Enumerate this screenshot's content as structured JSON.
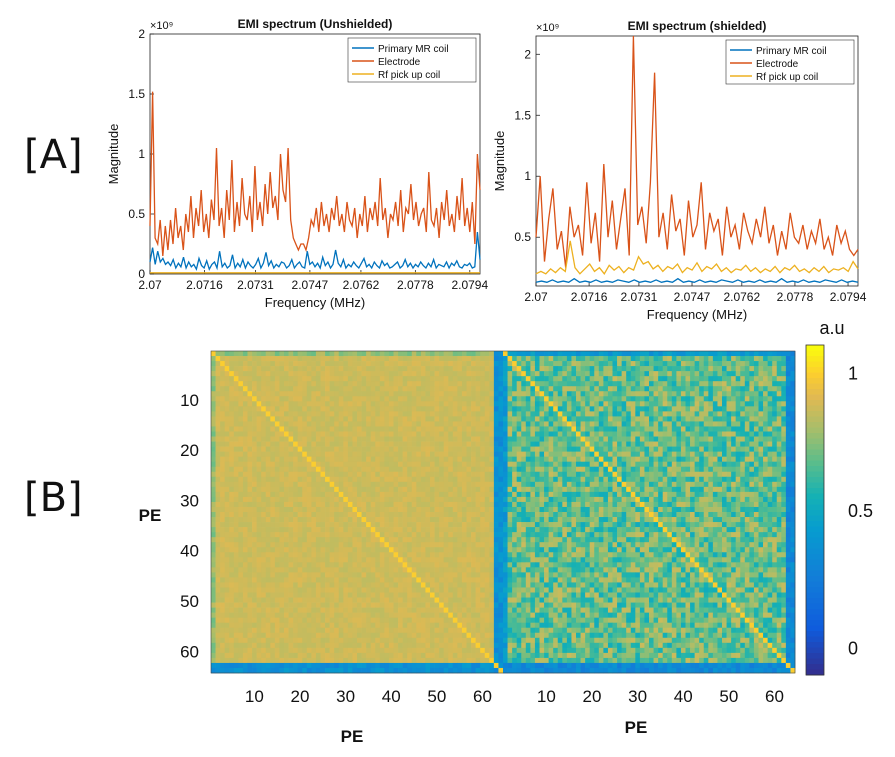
{
  "panels": {
    "a": "[A]",
    "b": "[B]"
  },
  "chart_data": [
    {
      "type": "line",
      "title": "EMI spectrum (Unshielded)",
      "xlabel": "Frequency (MHz)",
      "ylabel": "Magnitude",
      "exponent": "×10⁹",
      "xlim": [
        2.07,
        2.0797
      ],
      "ylim": [
        0,
        2
      ],
      "xticks": [
        "2.07",
        "2.0716",
        "2.0731",
        "2.0747",
        "2.0762",
        "2.0778",
        "2.0794"
      ],
      "yticks": [
        "0",
        "0.5",
        "1",
        "1.5",
        "2"
      ],
      "legend_position": "top-right",
      "series": [
        {
          "name": "Primary MR coil",
          "color": "#0072BD",
          "values": [
            0.1,
            0.22,
            0.08,
            0.19,
            0.1,
            0.13,
            0.08,
            0.1,
            0.07,
            0.12,
            0.05,
            0.09,
            0.06,
            0.14,
            0.05,
            0.1,
            0.06,
            0.08,
            0.04,
            0.13,
            0.07,
            0.05,
            0.11,
            0.04,
            0.08,
            0.1,
            0.05,
            0.19,
            0.06,
            0.09,
            0.05,
            0.07,
            0.16,
            0.05,
            0.09,
            0.06,
            0.12,
            0.05,
            0.1,
            0.07,
            0.05,
            0.08,
            0.13,
            0.05,
            0.09,
            0.18,
            0.07,
            0.11,
            0.05,
            0.08,
            0.06,
            0.1,
            0.09,
            0.05,
            0.07,
            0.12,
            0.05,
            0.08,
            0.1,
            0.06,
            0.05,
            0.19,
            0.08,
            0.1,
            0.06,
            0.09,
            0.05,
            0.14,
            0.07,
            0.1,
            0.05,
            0.08,
            0.2,
            0.09,
            0.06,
            0.12,
            0.05,
            0.08,
            0.06,
            0.1,
            0.07,
            0.05,
            0.09,
            0.13,
            0.06,
            0.08,
            0.05,
            0.1,
            0.07,
            0.05,
            0.11,
            0.07,
            0.09,
            0.05,
            0.06,
            0.08,
            0.1,
            0.05,
            0.07,
            0.12,
            0.06,
            0.09,
            0.05,
            0.08,
            0.06,
            0.1,
            0.07,
            0.05,
            0.09,
            0.06,
            0.12,
            0.05,
            0.08,
            0.07,
            0.06,
            0.1,
            0.05,
            0.09,
            0.07,
            0.11,
            0.06,
            0.05,
            0.08,
            0.07,
            0.09,
            0.05,
            0.06,
            0.35,
            0.12
          ]
        },
        {
          "name": "Electrode",
          "color": "#D95319",
          "values": [
            0.4,
            1.52,
            0.3,
            0.25,
            0.45,
            0.15,
            0.4,
            0.2,
            0.45,
            0.25,
            0.55,
            0.3,
            0.4,
            0.2,
            0.5,
            0.35,
            0.65,
            0.3,
            0.55,
            0.4,
            0.7,
            0.35,
            0.5,
            0.3,
            0.62,
            0.45,
            1.05,
            0.4,
            0.55,
            0.3,
            0.7,
            0.45,
            0.95,
            0.35,
            0.6,
            0.4,
            0.8,
            0.5,
            0.45,
            0.65,
            0.35,
            0.9,
            0.45,
            0.6,
            0.4,
            0.75,
            0.5,
            0.85,
            0.55,
            0.65,
            0.45,
            1.0,
            0.7,
            0.6,
            1.05,
            0.45,
            0.3,
            0.25,
            0.2,
            0.25,
            0.25,
            0.2,
            0.3,
            0.45,
            0.4,
            0.55,
            0.35,
            0.6,
            0.4,
            0.5,
            0.35,
            0.55,
            0.45,
            0.65,
            0.4,
            0.5,
            0.35,
            0.6,
            0.45,
            0.4,
            0.55,
            0.3,
            0.5,
            0.4,
            0.65,
            0.35,
            0.55,
            0.45,
            0.6,
            0.4,
            0.8,
            0.45,
            0.55,
            0.3,
            0.5,
            0.45,
            0.6,
            0.4,
            0.7,
            0.35,
            0.55,
            0.5,
            0.75,
            0.45,
            0.6,
            0.4,
            0.5,
            0.55,
            0.35,
            0.85,
            0.45,
            0.4,
            0.55,
            0.3,
            0.6,
            0.45,
            0.7,
            0.4,
            0.5,
            0.35,
            0.65,
            0.45,
            0.8,
            0.4,
            0.55,
            0.35,
            0.6,
            0.25,
            1.0,
            0.7
          ]
        },
        {
          "name": "Rf pick up coil",
          "color": "#EDB120",
          "values": [
            0.01,
            0.01,
            0.01,
            0.01,
            0.01,
            0.01,
            0.01,
            0.01,
            0.01,
            0.01,
            0.01,
            0.01,
            0.01,
            0.01,
            0.01,
            0.01,
            0.01,
            0.01,
            0.01,
            0.01,
            0.01,
            0.01,
            0.01,
            0.01,
            0.01,
            0.01,
            0.01,
            0.01,
            0.01,
            0.01,
            0.01,
            0.01,
            0.01,
            0.01,
            0.01,
            0.01,
            0.01,
            0.01,
            0.01,
            0.01
          ]
        }
      ]
    },
    {
      "type": "line",
      "title": "EMI spectrum (shielded)",
      "xlabel": "Frequency (MHz)",
      "ylabel": "Magnitude",
      "exponent": "×10⁹",
      "xlim": [
        2.07,
        2.0797
      ],
      "ylim": [
        0.1,
        2.15
      ],
      "xticks": [
        "2.07",
        "2.0716",
        "2.0731",
        "2.0747",
        "2.0762",
        "2.0778",
        "2.0794"
      ],
      "yticks": [
        "0.5",
        "1",
        "1.5",
        "2"
      ],
      "legend_position": "top-right",
      "series": [
        {
          "name": "Primary MR coil",
          "color": "#0072BD",
          "values": [
            0.13,
            0.14,
            0.13,
            0.15,
            0.13,
            0.14,
            0.13,
            0.16,
            0.13,
            0.14,
            0.13,
            0.15,
            0.13,
            0.14,
            0.13,
            0.15,
            0.14,
            0.13,
            0.15,
            0.13,
            0.14,
            0.13,
            0.15,
            0.13,
            0.14,
            0.13,
            0.16,
            0.13,
            0.14,
            0.13,
            0.15,
            0.13,
            0.14,
            0.13,
            0.15,
            0.14,
            0.13,
            0.15,
            0.13,
            0.14,
            0.13,
            0.15,
            0.13,
            0.14,
            0.13,
            0.16,
            0.13,
            0.14,
            0.13,
            0.15,
            0.13,
            0.14,
            0.13,
            0.15,
            0.14,
            0.13,
            0.15,
            0.13,
            0.14,
            0.13
          ]
        },
        {
          "name": "Electrode",
          "color": "#D95319",
          "values": [
            0.5,
            1.0,
            0.3,
            0.65,
            0.9,
            0.4,
            0.55,
            0.25,
            0.75,
            0.5,
            0.6,
            0.35,
            0.95,
            0.45,
            0.7,
            0.3,
            1.1,
            0.5,
            0.8,
            0.4,
            0.65,
            0.9,
            0.35,
            2.15,
            0.6,
            0.75,
            0.45,
            0.95,
            1.85,
            0.5,
            0.7,
            0.4,
            0.85,
            0.55,
            0.65,
            0.35,
            0.8,
            0.5,
            0.6,
            0.95,
            0.4,
            0.7,
            0.55,
            0.65,
            0.35,
            0.75,
            0.5,
            0.6,
            0.4,
            0.7,
            0.55,
            0.45,
            0.65,
            0.5,
            0.75,
            0.45,
            0.6,
            0.35,
            0.55,
            0.4,
            0.7,
            0.5,
            0.45,
            0.6,
            0.4,
            0.55,
            0.45,
            0.65,
            0.4,
            0.5,
            0.35,
            0.6,
            0.45,
            0.55,
            0.4,
            0.35,
            0.4
          ]
        },
        {
          "name": "Rf pick up coil",
          "color": "#EDB120",
          "values": [
            0.2,
            0.22,
            0.2,
            0.24,
            0.21,
            0.25,
            0.22,
            0.47,
            0.25,
            0.2,
            0.24,
            0.28,
            0.22,
            0.25,
            0.2,
            0.27,
            0.23,
            0.26,
            0.21,
            0.25,
            0.23,
            0.34,
            0.28,
            0.3,
            0.24,
            0.27,
            0.22,
            0.26,
            0.24,
            0.28,
            0.21,
            0.25,
            0.23,
            0.29,
            0.22,
            0.26,
            0.24,
            0.28,
            0.22,
            0.25,
            0.21,
            0.24,
            0.23,
            0.27,
            0.22,
            0.25,
            0.21,
            0.24,
            0.22,
            0.26,
            0.21,
            0.25,
            0.23,
            0.27,
            0.22,
            0.24,
            0.21,
            0.25,
            0.22,
            0.26,
            0.21,
            0.24,
            0.23,
            0.25,
            0.22,
            0.3,
            0.24
          ]
        }
      ]
    },
    {
      "type": "heatmap",
      "xlabel": "PE",
      "ylabel": "PE",
      "colorbar_label": "a.u",
      "colormap": "parula",
      "clim": [
        -0.1,
        1.1
      ],
      "colorbar_ticks": [
        "0",
        "0.5",
        "1"
      ],
      "xticks": [
        "10",
        "20",
        "30",
        "40",
        "50",
        "60",
        "10",
        "20",
        "30",
        "40",
        "50",
        "60"
      ],
      "yticks": [
        "10",
        "20",
        "30",
        "40",
        "50",
        "60"
      ],
      "blocks": [
        {
          "name": "unshielded",
          "size": 64,
          "diagonal": 1.0,
          "interior": 0.88,
          "edge": 0.7
        },
        {
          "name": "shielded",
          "size": 64,
          "diagonal": 1.0,
          "interior": 0.7,
          "edge": 0.35
        }
      ]
    }
  ]
}
